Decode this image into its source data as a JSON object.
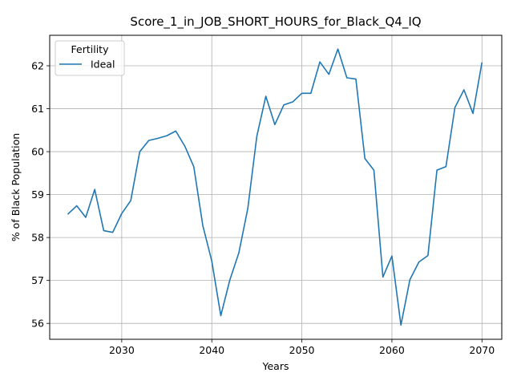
{
  "chart_data": {
    "type": "line",
    "title": "Score_1_in_JOB_SHORT_HOURS_for_Black_Q4_IQ",
    "xlabel": "Years",
    "ylabel": "% of Black Population",
    "xlim": [
      2022,
      2072.2
    ],
    "ylim": [
      55.63,
      62.71
    ],
    "xticks": [
      2030,
      2040,
      2050,
      2060,
      2070
    ],
    "yticks": [
      56,
      57,
      58,
      59,
      60,
      61,
      62
    ],
    "grid": true,
    "legend": {
      "title": "Fertility",
      "placement": "top-left"
    },
    "series": [
      {
        "name": "Ideal",
        "color": "#1f77b4",
        "x": [
          2024,
          2025,
          2026,
          2027,
          2028,
          2029,
          2030,
          2031,
          2032,
          2033,
          2034,
          2035,
          2036,
          2037,
          2038,
          2039,
          2040,
          2041,
          2042,
          2043,
          2044,
          2045,
          2046,
          2047,
          2048,
          2049,
          2050,
          2051,
          2052,
          2053,
          2054,
          2055,
          2056,
          2057,
          2058,
          2059,
          2060,
          2061,
          2062,
          2063,
          2064,
          2065,
          2066,
          2067,
          2068,
          2069,
          2070
        ],
        "y": [
          58.54,
          58.74,
          58.47,
          59.12,
          58.16,
          58.12,
          58.56,
          58.86,
          60.0,
          60.26,
          60.31,
          60.37,
          60.48,
          60.13,
          59.65,
          58.28,
          57.45,
          56.18,
          57.01,
          57.64,
          58.68,
          60.36,
          61.29,
          60.63,
          61.09,
          61.16,
          61.36,
          61.36,
          62.09,
          61.8,
          62.39,
          61.72,
          61.69,
          59.84,
          59.57,
          57.08,
          57.57,
          55.96,
          57.02,
          57.43,
          57.58,
          59.57,
          59.65,
          61.03,
          61.44,
          60.89,
          62.08
        ]
      }
    ]
  }
}
